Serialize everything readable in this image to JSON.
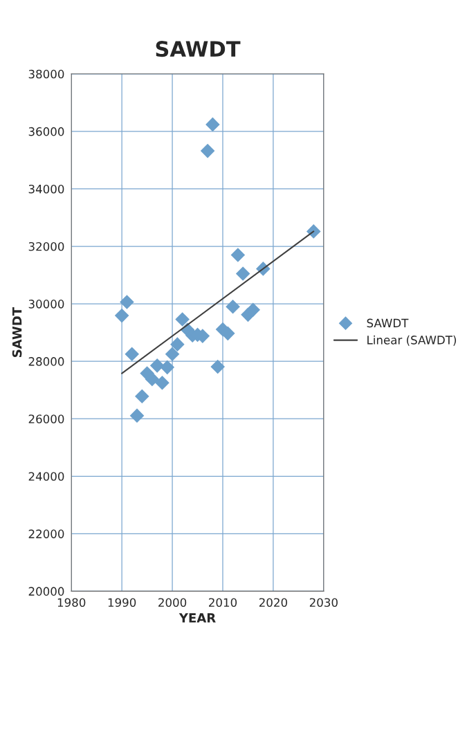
{
  "chart_data": {
    "type": "scatter",
    "title": "SAWDT",
    "xlabel": "YEAR",
    "ylabel": "SAWDT",
    "series": [
      {
        "name": "SAWDT",
        "color": "#6a9fcb",
        "marker": "diamond",
        "x": [
          1990,
          1991,
          1992,
          1993,
          1994,
          1995,
          1996,
          1997,
          1998,
          1999,
          2000,
          2001,
          2002,
          2003,
          2004,
          2005,
          2006,
          2007,
          2008,
          2009,
          2010,
          2011,
          2012,
          2013,
          2014,
          2015,
          2016,
          2018,
          2028
        ],
        "values": [
          29590,
          30060,
          28250,
          26110,
          26780,
          27580,
          27380,
          27850,
          27250,
          27790,
          28250,
          28590,
          29460,
          29100,
          28900,
          28920,
          28880,
          35320,
          36240,
          27810,
          29110,
          28970,
          29900,
          31700,
          31050,
          29620,
          29790,
          31220,
          32520
        ]
      },
      {
        "name": "Linear (SAWDT)",
        "type": "line",
        "color": "#404040",
        "marker": "none",
        "x": [
          1990,
          2028
        ],
        "values": [
          27580,
          32520
        ]
      }
    ],
    "xlim": [
      1980,
      2030
    ],
    "xticks": [
      1980,
      1990,
      2000,
      2010,
      2020,
      2030
    ],
    "ylim": [
      20000,
      38000
    ],
    "yticks": [
      20000,
      22000,
      24000,
      26000,
      28000,
      30000,
      32000,
      34000,
      36000,
      38000
    ],
    "grid": true,
    "legend": "right"
  }
}
